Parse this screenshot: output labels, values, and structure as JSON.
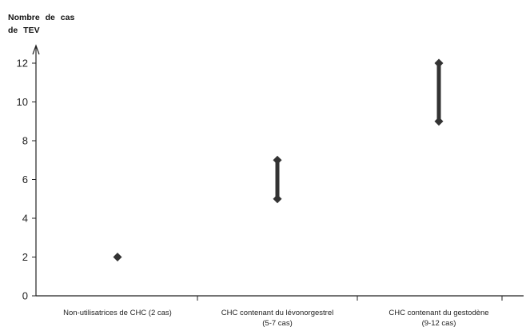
{
  "chart_data": {
    "type": "scatter",
    "title": "",
    "xlabel": "",
    "ylabel": "Nombre de cas de TEV",
    "ylabel_lines": [
      "Nombre de cas",
      "de TEV"
    ],
    "ylim": [
      0,
      12
    ],
    "yticks": [
      0,
      2,
      4,
      6,
      8,
      10,
      12
    ],
    "grid": false,
    "legend": "none",
    "marker_color": "#333333",
    "categories": [
      "Non-utilisatrices de CHC (2 cas)",
      "CHC contenant du lévonorgestrel (5-7 cas)",
      "CHC contenant du gestodène (9-12 cas)"
    ],
    "category_lines": [
      [
        "Non-utilisatrices de CHC (2 cas)"
      ],
      [
        "CHC contenant du lévonorgestrel",
        "(5-7 cas)"
      ],
      [
        "CHC contenant du gestodène",
        "(9-12 cas)"
      ]
    ],
    "ranges": [
      {
        "low": 2,
        "high": 2
      },
      {
        "low": 5,
        "high": 7
      },
      {
        "low": 9,
        "high": 12
      }
    ]
  }
}
